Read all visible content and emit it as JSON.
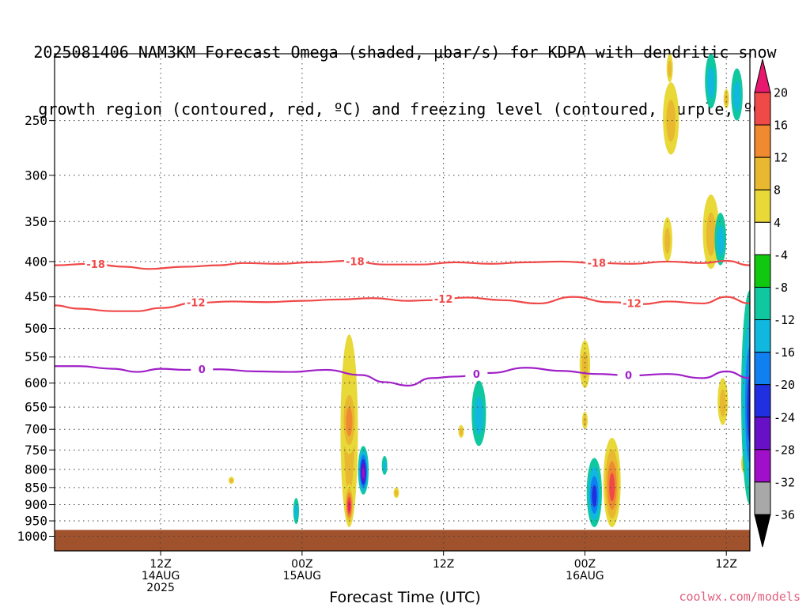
{
  "header": {
    "title_line1": "2025081406 NAM3KM Forecast Omega (shaded, μbar/s) for KDPA with dendritic snow",
    "title_line2": "growth region (contoured, red, ºC) and freezing level (contoured, purple, ºC)"
  },
  "footer": {
    "xaxis_title": "Forecast Time (UTC)",
    "credit": "coolwx.com/models"
  },
  "chart_data": {
    "type": "heatmap",
    "title": "2025081406 NAM3KM Forecast Omega (shaded, μbar/s) for KDPA with dendritic snow growth region (contoured, red, ºC) and freezing level (contoured, purple, ºC)",
    "xlabel": "Forecast Time (UTC)",
    "ylabel": "",
    "y_scale": "log-pressure (inverted)",
    "xlim_hours_from_14AUG_00Z": [
      3,
      62
    ],
    "ylim_hPa": [
      1050,
      200
    ],
    "grid": "dotted lines at each pressure level and each 12h tick",
    "y_ticks": [
      250,
      300,
      350,
      400,
      450,
      500,
      550,
      600,
      650,
      700,
      750,
      800,
      850,
      900,
      950,
      1000
    ],
    "x_ticks": [
      {
        "hour": 12,
        "lines": [
          "12Z",
          "14AUG",
          "2025"
        ]
      },
      {
        "hour": 24,
        "lines": [
          "00Z",
          "15AUG"
        ]
      },
      {
        "hour": 36,
        "lines": [
          "12Z"
        ]
      },
      {
        "hour": 48,
        "lines": [
          "00Z",
          "16AUG"
        ]
      },
      {
        "hour": 60,
        "lines": [
          "12Z"
        ]
      }
    ],
    "colorbar": {
      "levels": [
        20,
        16,
        12,
        8,
        4,
        -4,
        -8,
        -12,
        -16,
        -20,
        -24,
        -28,
        -32,
        -36
      ],
      "colors": [
        "#e8186e",
        "#f04a48",
        "#f08a30",
        "#e8b830",
        "#e8d838",
        "#ffffff",
        "#10c810",
        "#10c8a0",
        "#10b8e0",
        "#1080f0",
        "#2030e0",
        "#6810c8",
        "#a010c8",
        "#a8a8a8",
        "#000000"
      ],
      "extend": "both"
    },
    "terrain": {
      "color": "#a0522d",
      "below_hPa": 1000
    },
    "contours": [
      {
        "label": "-18",
        "color": "#f04848",
        "x": [
          3,
          6,
          9,
          11,
          14,
          17,
          19,
          22,
          25,
          28,
          31,
          34,
          37,
          40,
          43,
          46,
          49,
          52,
          55,
          58,
          60,
          62
        ],
        "y": [
          405,
          403,
          407,
          410,
          407,
          405,
          402,
          403,
          401,
          399,
          404,
          404,
          401,
          403,
          401,
          400,
          402,
          403,
          400,
          402,
          399,
          405
        ],
        "labels_at": [
          6.5,
          28.5,
          49
        ]
      },
      {
        "label": "-12",
        "color": "#f04848",
        "x": [
          3,
          5,
          8,
          10,
          12,
          15,
          18,
          21,
          24,
          27,
          30,
          33,
          35,
          38,
          41,
          44,
          47,
          50,
          53,
          55,
          58,
          60,
          62
        ],
        "y": [
          463,
          468,
          472,
          472,
          467,
          459,
          457,
          458,
          456,
          454,
          452,
          456,
          455,
          451,
          455,
          460,
          450,
          458,
          461,
          457,
          460,
          450,
          460
        ],
        "labels_at": [
          15,
          36,
          52
        ]
      },
      {
        "label": "0",
        "color": "#a020c8",
        "x": [
          3,
          5,
          8,
          10,
          12,
          14,
          17,
          20,
          23,
          26,
          29,
          31,
          33,
          35,
          37,
          40,
          43,
          46,
          49,
          52,
          55,
          58,
          60,
          62
        ],
        "y": [
          567,
          567,
          572,
          578,
          572,
          574,
          573,
          577,
          578,
          574,
          584,
          598,
          605,
          590,
          587,
          580,
          570,
          576,
          582,
          585,
          582,
          590,
          577,
          590
        ],
        "labels_at": [
          15.5,
          38.8,
          51.7
        ]
      }
    ],
    "omega_features": [
      {
        "x_hour": 28,
        "top_hPa": 510,
        "bottom_hPa": 970,
        "omega_min": 4,
        "omega_max": 8
      },
      {
        "x_hour": 28,
        "top_hPa": 600,
        "bottom_hPa": 760,
        "omega_min": 8,
        "omega_max": 12
      },
      {
        "x_hour": 28,
        "top_hPa": 840,
        "bottom_hPa": 960,
        "omega_min": 4,
        "omega_max": 20
      },
      {
        "x_hour": 29.2,
        "top_hPa": 740,
        "bottom_hPa": 870,
        "omega_min": -24,
        "omega_max": -4
      },
      {
        "x_hour": 31,
        "top_hPa": 765,
        "bottom_hPa": 815,
        "omega_min": -8,
        "omega_max": -4
      },
      {
        "x_hour": 23.5,
        "top_hPa": 880,
        "bottom_hPa": 960,
        "omega_min": -8,
        "omega_max": -4
      },
      {
        "x_hour": 32,
        "top_hPa": 850,
        "bottom_hPa": 880,
        "omega_min": 4,
        "omega_max": 8
      },
      {
        "x_hour": 18,
        "top_hPa": 820,
        "bottom_hPa": 840,
        "omega_min": 4,
        "omega_max": 8
      },
      {
        "x_hour": 39,
        "top_hPa": 595,
        "bottom_hPa": 740,
        "omega_min": -8,
        "omega_max": -4
      },
      {
        "x_hour": 37.5,
        "top_hPa": 690,
        "bottom_hPa": 720,
        "omega_min": 4,
        "omega_max": 8
      },
      {
        "x_hour": 48,
        "top_hPa": 520,
        "bottom_hPa": 610,
        "omega_min": 4,
        "omega_max": 8
      },
      {
        "x_hour": 48,
        "top_hPa": 660,
        "bottom_hPa": 700,
        "omega_min": 4,
        "omega_max": 8
      },
      {
        "x_hour": 48.8,
        "top_hPa": 770,
        "bottom_hPa": 970,
        "omega_min": -16,
        "omega_max": -4
      },
      {
        "x_hour": 50.3,
        "top_hPa": 720,
        "bottom_hPa": 970,
        "omega_min": 4,
        "omega_max": 16
      },
      {
        "x_hour": 55.2,
        "top_hPa": 200,
        "bottom_hPa": 220,
        "omega_min": 4,
        "omega_max": 8
      },
      {
        "x_hour": 55.3,
        "top_hPa": 220,
        "bottom_hPa": 280,
        "omega_min": 4,
        "omega_max": 8
      },
      {
        "x_hour": 55,
        "top_hPa": 345,
        "bottom_hPa": 400,
        "omega_min": 4,
        "omega_max": 8
      },
      {
        "x_hour": 58.7,
        "top_hPa": 320,
        "bottom_hPa": 410,
        "omega_min": 4,
        "omega_max": 8
      },
      {
        "x_hour": 58.7,
        "top_hPa": 200,
        "bottom_hPa": 240,
        "omega_min": -8,
        "omega_max": -4
      },
      {
        "x_hour": 59.5,
        "top_hPa": 340,
        "bottom_hPa": 405,
        "omega_min": -8,
        "omega_max": -4
      },
      {
        "x_hour": 60,
        "top_hPa": 225,
        "bottom_hPa": 240,
        "omega_min": 4,
        "omega_max": 8
      },
      {
        "x_hour": 60.9,
        "top_hPa": 210,
        "bottom_hPa": 250,
        "omega_min": -8,
        "omega_max": -4
      },
      {
        "x_hour": 59.7,
        "top_hPa": 590,
        "bottom_hPa": 690,
        "omega_min": 4,
        "omega_max": 8
      },
      {
        "x_hour": 61.5,
        "top_hPa": 760,
        "bottom_hPa": 810,
        "omega_min": 4,
        "omega_max": 8
      },
      {
        "x_hour": 62,
        "top_hPa": 440,
        "bottom_hPa": 900,
        "omega_min": -16,
        "omega_max": -4
      }
    ]
  }
}
